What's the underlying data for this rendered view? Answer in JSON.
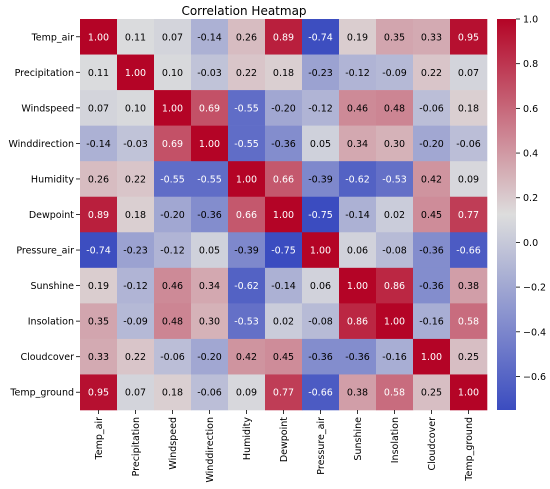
{
  "chart_data": {
    "type": "heatmap",
    "title": "Correlation Heatmap",
    "variables": [
      "Temp_air",
      "Precipitation",
      "Windspeed",
      "Winddirection",
      "Humidity",
      "Dewpoint",
      "Pressure_air",
      "Sunshine",
      "Insolation",
      "Cloudcover",
      "Temp_ground"
    ],
    "matrix": [
      [
        1.0,
        0.11,
        0.07,
        -0.14,
        0.26,
        0.89,
        -0.74,
        0.19,
        0.35,
        0.33,
        0.95
      ],
      [
        0.11,
        1.0,
        0.1,
        -0.03,
        0.22,
        0.18,
        -0.23,
        -0.12,
        -0.09,
        0.22,
        0.07
      ],
      [
        0.07,
        0.1,
        1.0,
        0.69,
        -0.55,
        -0.2,
        -0.12,
        0.46,
        0.48,
        -0.06,
        0.18
      ],
      [
        -0.14,
        -0.03,
        0.69,
        1.0,
        -0.55,
        -0.36,
        0.05,
        0.34,
        0.3,
        -0.2,
        -0.06
      ],
      [
        0.26,
        0.22,
        -0.55,
        -0.55,
        1.0,
        0.66,
        -0.39,
        -0.62,
        -0.53,
        0.42,
        0.09
      ],
      [
        0.89,
        0.18,
        -0.2,
        -0.36,
        0.66,
        1.0,
        -0.75,
        -0.14,
        0.02,
        0.45,
        0.77
      ],
      [
        -0.74,
        -0.23,
        -0.12,
        0.05,
        -0.39,
        -0.75,
        1.0,
        0.06,
        -0.08,
        -0.36,
        -0.66
      ],
      [
        0.19,
        -0.12,
        0.46,
        0.34,
        -0.62,
        -0.14,
        0.06,
        1.0,
        0.86,
        -0.36,
        0.38
      ],
      [
        0.35,
        -0.09,
        0.48,
        0.3,
        -0.53,
        0.02,
        -0.08,
        0.86,
        1.0,
        -0.16,
        0.58
      ],
      [
        0.33,
        0.22,
        -0.06,
        -0.2,
        0.42,
        0.45,
        -0.36,
        -0.36,
        -0.16,
        1.0,
        0.25
      ],
      [
        0.95,
        0.07,
        0.18,
        -0.06,
        0.09,
        0.77,
        -0.66,
        0.38,
        0.58,
        0.25,
        1.0
      ]
    ],
    "value_format": "2-decimal",
    "colormap": "coolwarm",
    "colorbar": {
      "range": [
        -0.75,
        1.0
      ],
      "ticks": [
        -0.6,
        -0.4,
        -0.2,
        0.0,
        0.2,
        0.4,
        0.6,
        0.8,
        1.0
      ],
      "tick_labels": [
        "−0.6",
        "−0.4",
        "−0.2",
        "0.0",
        "0.2",
        "0.4",
        "0.6",
        "0.8",
        "1.0"
      ]
    },
    "colors": {
      "low": "#3b4cc0",
      "mid": "#dddddd",
      "high": "#b40426"
    },
    "grid": false
  }
}
